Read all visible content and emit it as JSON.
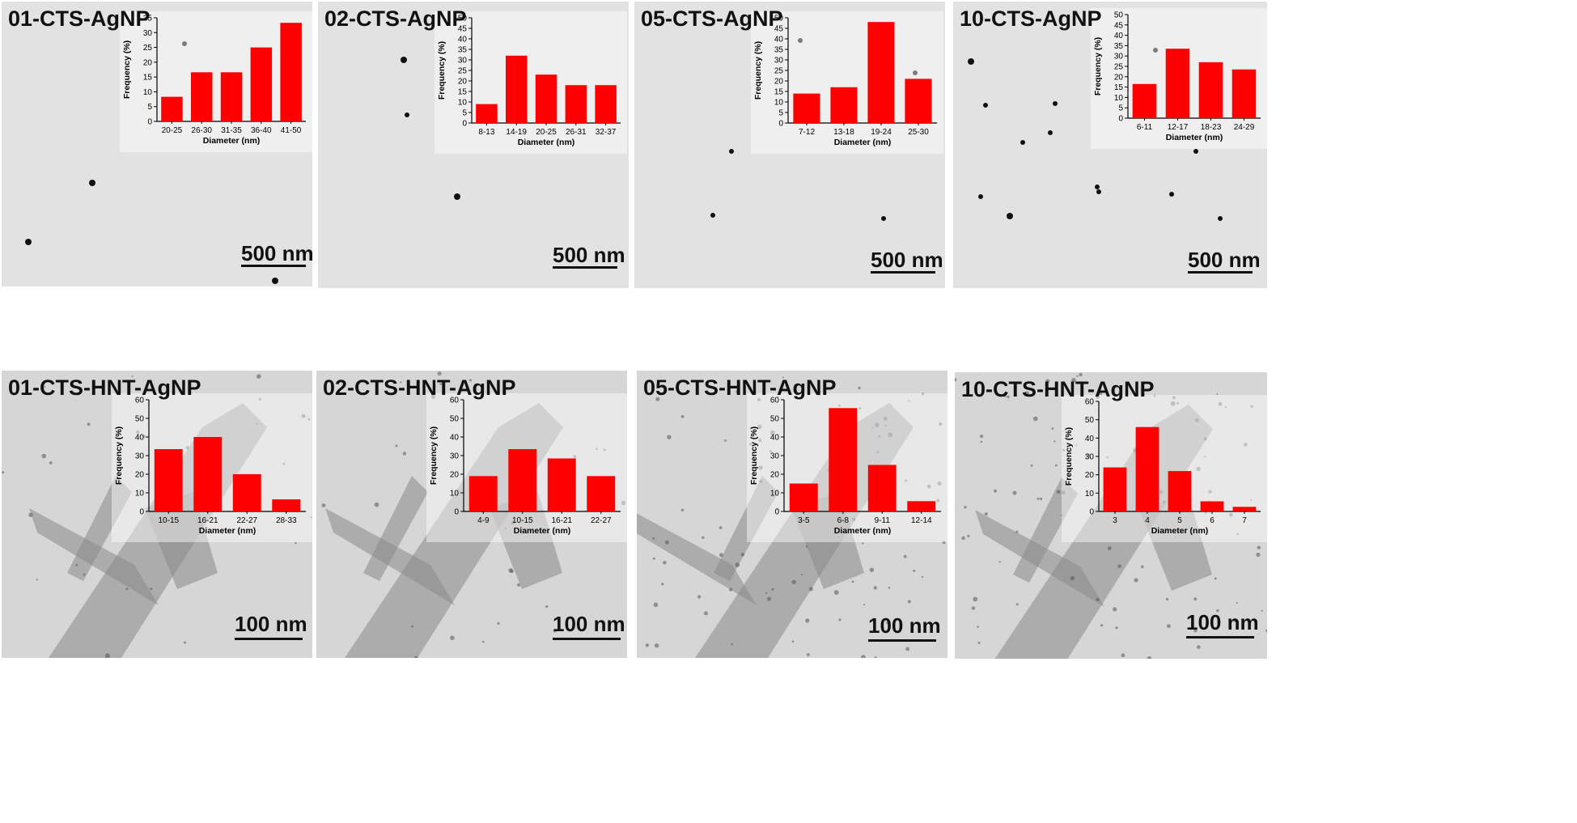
{
  "colors": {
    "bar": "#ff0000",
    "top_background": "#e2e2e2",
    "bottom_background": "#d6d6d6",
    "axis": "#000000"
  },
  "chart_data": [
    {
      "type": "bar",
      "panel_label": "01-CTS-AgNP",
      "scale_bar": "500 nm",
      "categories": [
        "20-25",
        "26-30",
        "31-35",
        "36-40",
        "41-50"
      ],
      "values": [
        8.3,
        16.6,
        16.6,
        25,
        33.3
      ],
      "xlabel": "Diameter (nm)",
      "ylabel": "Frequency (%)",
      "ylim": [
        0,
        35
      ],
      "yticks": [
        0,
        5,
        10,
        15,
        20,
        25,
        30,
        35
      ],
      "grid": false
    },
    {
      "type": "bar",
      "panel_label": "02-CTS-AgNP",
      "scale_bar": "500 nm",
      "categories": [
        "8-13",
        "14-19",
        "20-25",
        "26-31",
        "32-37"
      ],
      "values": [
        9,
        32,
        23,
        18,
        18
      ],
      "xlabel": "Diameter (nm)",
      "ylabel": "Frequency (%)",
      "ylim": [
        0,
        50
      ],
      "yticks": [
        0,
        5,
        10,
        15,
        20,
        25,
        30,
        35,
        40,
        45,
        50
      ],
      "grid": false
    },
    {
      "type": "bar",
      "panel_label": "05-CTS-AgNP",
      "scale_bar": "500 nm",
      "categories": [
        "7-12",
        "13-18",
        "19-24",
        "25-30"
      ],
      "values": [
        14,
        17,
        48,
        21
      ],
      "xlabel": "Diameter (nm)",
      "ylabel": "Frequency (%)",
      "ylim": [
        0,
        50
      ],
      "yticks": [
        0,
        5,
        10,
        15,
        20,
        25,
        30,
        35,
        40,
        45,
        50
      ],
      "grid": false
    },
    {
      "type": "bar",
      "panel_label": "10-CTS-AgNP",
      "scale_bar": "500 nm",
      "categories": [
        "6-11",
        "12-17",
        "18-23",
        "24-29"
      ],
      "values": [
        16.5,
        33.5,
        27,
        23.5
      ],
      "xlabel": "Diameter (nm)",
      "ylabel": "Frequency (%)",
      "ylim": [
        0,
        50
      ],
      "yticks": [
        0,
        5,
        10,
        15,
        20,
        25,
        30,
        35,
        40,
        45,
        50
      ],
      "grid": false
    },
    {
      "type": "bar",
      "panel_label": "01-CTS-HNT-AgNP",
      "scale_bar": "100 nm",
      "categories": [
        "10-15",
        "16-21",
        "22-27",
        "28-33"
      ],
      "values": [
        33.5,
        40,
        20,
        6.5
      ],
      "xlabel": "Diameter (nm)",
      "ylabel": "Frequency (%)",
      "ylim": [
        0,
        60
      ],
      "yticks": [
        0,
        10,
        20,
        30,
        40,
        50,
        60
      ],
      "grid": false
    },
    {
      "type": "bar",
      "panel_label": "02-CTS-HNT-AgNP",
      "scale_bar": "100 nm",
      "categories": [
        "4-9",
        "10-15",
        "16-21",
        "22-27"
      ],
      "values": [
        19,
        33.5,
        28.5,
        19
      ],
      "xlabel": "Diameter (nm)",
      "ylabel": "Frequency (%)",
      "ylim": [
        0,
        60
      ],
      "yticks": [
        0,
        10,
        20,
        30,
        40,
        50,
        60
      ],
      "grid": false
    },
    {
      "type": "bar",
      "panel_label": "05-CTS-HNT-AgNP",
      "scale_bar": "100 nm",
      "categories": [
        "3-5",
        "6-8",
        "9-11",
        "12-14"
      ],
      "values": [
        15,
        55.5,
        25,
        5.5
      ],
      "xlabel": "Diameter (nm)",
      "ylabel": "Frequency (%)",
      "ylim": [
        0,
        60
      ],
      "yticks": [
        0,
        10,
        20,
        30,
        40,
        50,
        60
      ],
      "grid": false
    },
    {
      "type": "bar",
      "panel_label": "10-CTS-HNT-AgNP",
      "scale_bar": "100 nm",
      "categories": [
        "3",
        "4",
        "5",
        "6",
        "7"
      ],
      "values": [
        24,
        46,
        22,
        5.5,
        2.5
      ],
      "xlabel": "Diameter (nm)",
      "ylabel": "Frequency (%)",
      "ylim": [
        0,
        60
      ],
      "yticks": [
        0,
        10,
        20,
        30,
        40,
        50,
        60
      ],
      "grid": false
    }
  ]
}
